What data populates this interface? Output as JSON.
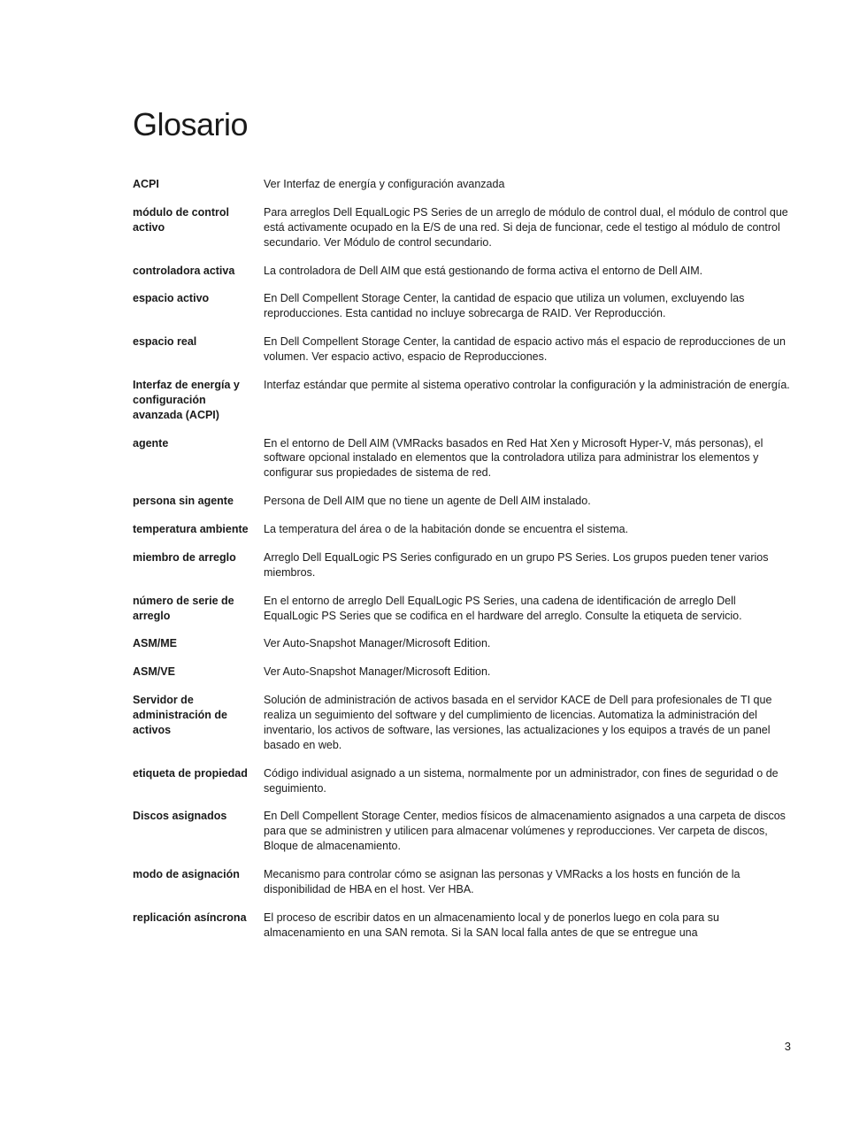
{
  "title": "Glosario",
  "page_number": "3",
  "entries": [
    {
      "term": "ACPI",
      "definition": "Ver Interfaz de energía y configuración avanzada"
    },
    {
      "term": "módulo de control activo",
      "definition": "Para arreglos Dell EqualLogic PS Series de un arreglo de módulo de control dual, el módulo de control que está activamente ocupado en la E/S de una red. Si deja de funcionar, cede el testigo al módulo de control secundario. Ver Módulo de control secundario."
    },
    {
      "term": "controladora activa",
      "definition": "La controladora de Dell AIM que está gestionando de forma activa el entorno de Dell AIM."
    },
    {
      "term": "espacio activo",
      "definition": "En Dell Compellent Storage Center, la cantidad de espacio que utiliza un volumen, excluyendo las reproducciones. Esta cantidad no incluye sobrecarga de RAID. Ver Reproducción."
    },
    {
      "term": "espacio real",
      "definition": "En Dell Compellent Storage Center, la cantidad de espacio activo más el espacio de reproducciones de un volumen. Ver espacio activo, espacio de Reproducciones."
    },
    {
      "term": "Interfaz de energía y configuración avanzada (ACPI)",
      "definition": "Interfaz estándar que permite al sistema operativo controlar la configuración y la administración de energía."
    },
    {
      "term": "agente",
      "definition": "En el entorno de Dell AIM (VMRacks basados en Red Hat Xen y Microsoft Hyper-V, más personas), el software opcional instalado en elementos que la controladora utiliza para administrar los elementos y configurar sus propiedades de sistema de red."
    },
    {
      "term": "persona sin agente",
      "definition": "Persona de Dell AIM que no tiene un agente de Dell AIM instalado."
    },
    {
      "term": "temperatura ambiente",
      "definition": "La temperatura del área o de la habitación donde se encuentra el sistema."
    },
    {
      "term": "miembro de arreglo",
      "definition": "Arreglo Dell EqualLogic PS Series configurado en un grupo PS Series. Los grupos pueden tener varios miembros."
    },
    {
      "term": "número de serie de arreglo",
      "definition": "En el entorno de arreglo Dell EqualLogic PS Series, una cadena de identificación de arreglo Dell EqualLogic PS Series que se codifica en el hardware del arreglo. Consulte la etiqueta de servicio."
    },
    {
      "term": "ASM/ME",
      "definition": "Ver Auto-Snapshot Manager/Microsoft Edition."
    },
    {
      "term": "ASM/VE",
      "definition": "Ver Auto-Snapshot Manager/Microsoft Edition."
    },
    {
      "term": "Servidor de administración de activos",
      "definition": "Solución de administración de activos basada en el servidor KACE de Dell para profesionales de TI que realiza un seguimiento del software y del cumplimiento de licencias. Automatiza la administración del inventario, los activos de software, las versiones, las actualizaciones y los equipos a través de un panel basado en web."
    },
    {
      "term": "etiqueta de propiedad",
      "definition": "Código individual asignado a un sistema, normalmente por un administrador, con fines de seguridad o de seguimiento."
    },
    {
      "term": "Discos asignados",
      "definition": "En Dell Compellent Storage Center, medios físicos de almacenamiento asignados a una carpeta de discos para que se administren y utilicen para almacenar volúmenes y reproducciones. Ver carpeta de discos, Bloque de almacenamiento."
    },
    {
      "term": "modo de asignación",
      "definition": "Mecanismo para controlar cómo se asignan las personas y VMRacks a los hosts en función de la disponibilidad de HBA en el host. Ver HBA."
    },
    {
      "term": "replicación asíncrona",
      "definition": "El proceso de escribir datos en un almacenamiento local y de ponerlos luego en cola para su almacenamiento en una SAN remota. Si la SAN local falla antes de que se entregue una"
    }
  ]
}
